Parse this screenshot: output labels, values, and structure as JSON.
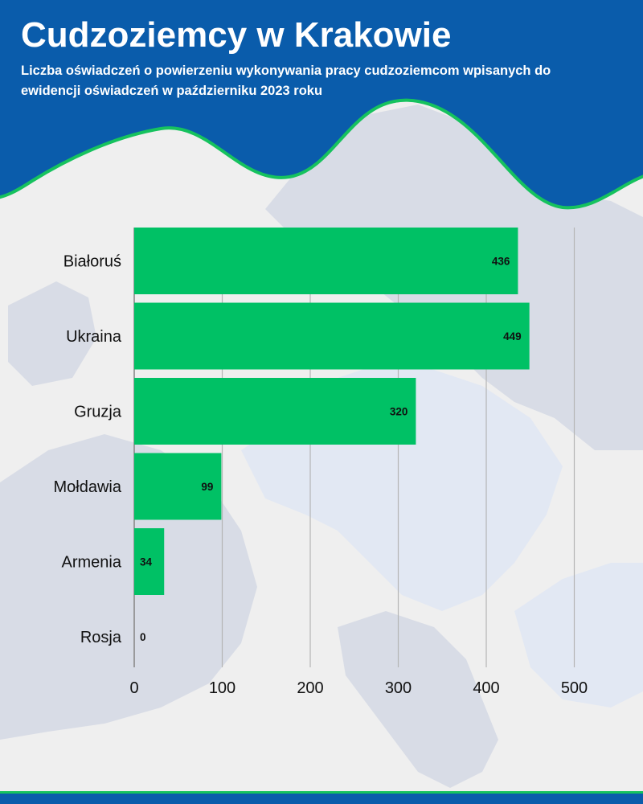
{
  "header": {
    "title": "Cudzoziemcy w Krakowie",
    "subtitle": "Liczba oświadczeń o powierzeniu wykonywania pracy cudzoziemcom wpisanych do ewidencji oświadczeń w październiku 2023 roku"
  },
  "colors": {
    "header_blue": "#0a5cab",
    "accent_green": "#16c25e",
    "bar_green": "#00c165",
    "background": "#efefef",
    "map_land": "#d8dce6",
    "map_land_light": "#e2e8f3"
  },
  "chart_data": {
    "type": "bar",
    "orientation": "horizontal",
    "categories": [
      "Białoruś",
      "Ukraina",
      "Gruzja",
      "Mołdawia",
      "Armenia",
      "Rosja"
    ],
    "values": [
      436,
      449,
      320,
      99,
      34,
      0
    ],
    "xlim": [
      0,
      500
    ],
    "xticks": [
      0,
      100,
      200,
      300,
      400,
      500
    ],
    "grid": "vertical",
    "legend": "none",
    "data_labels": true
  }
}
